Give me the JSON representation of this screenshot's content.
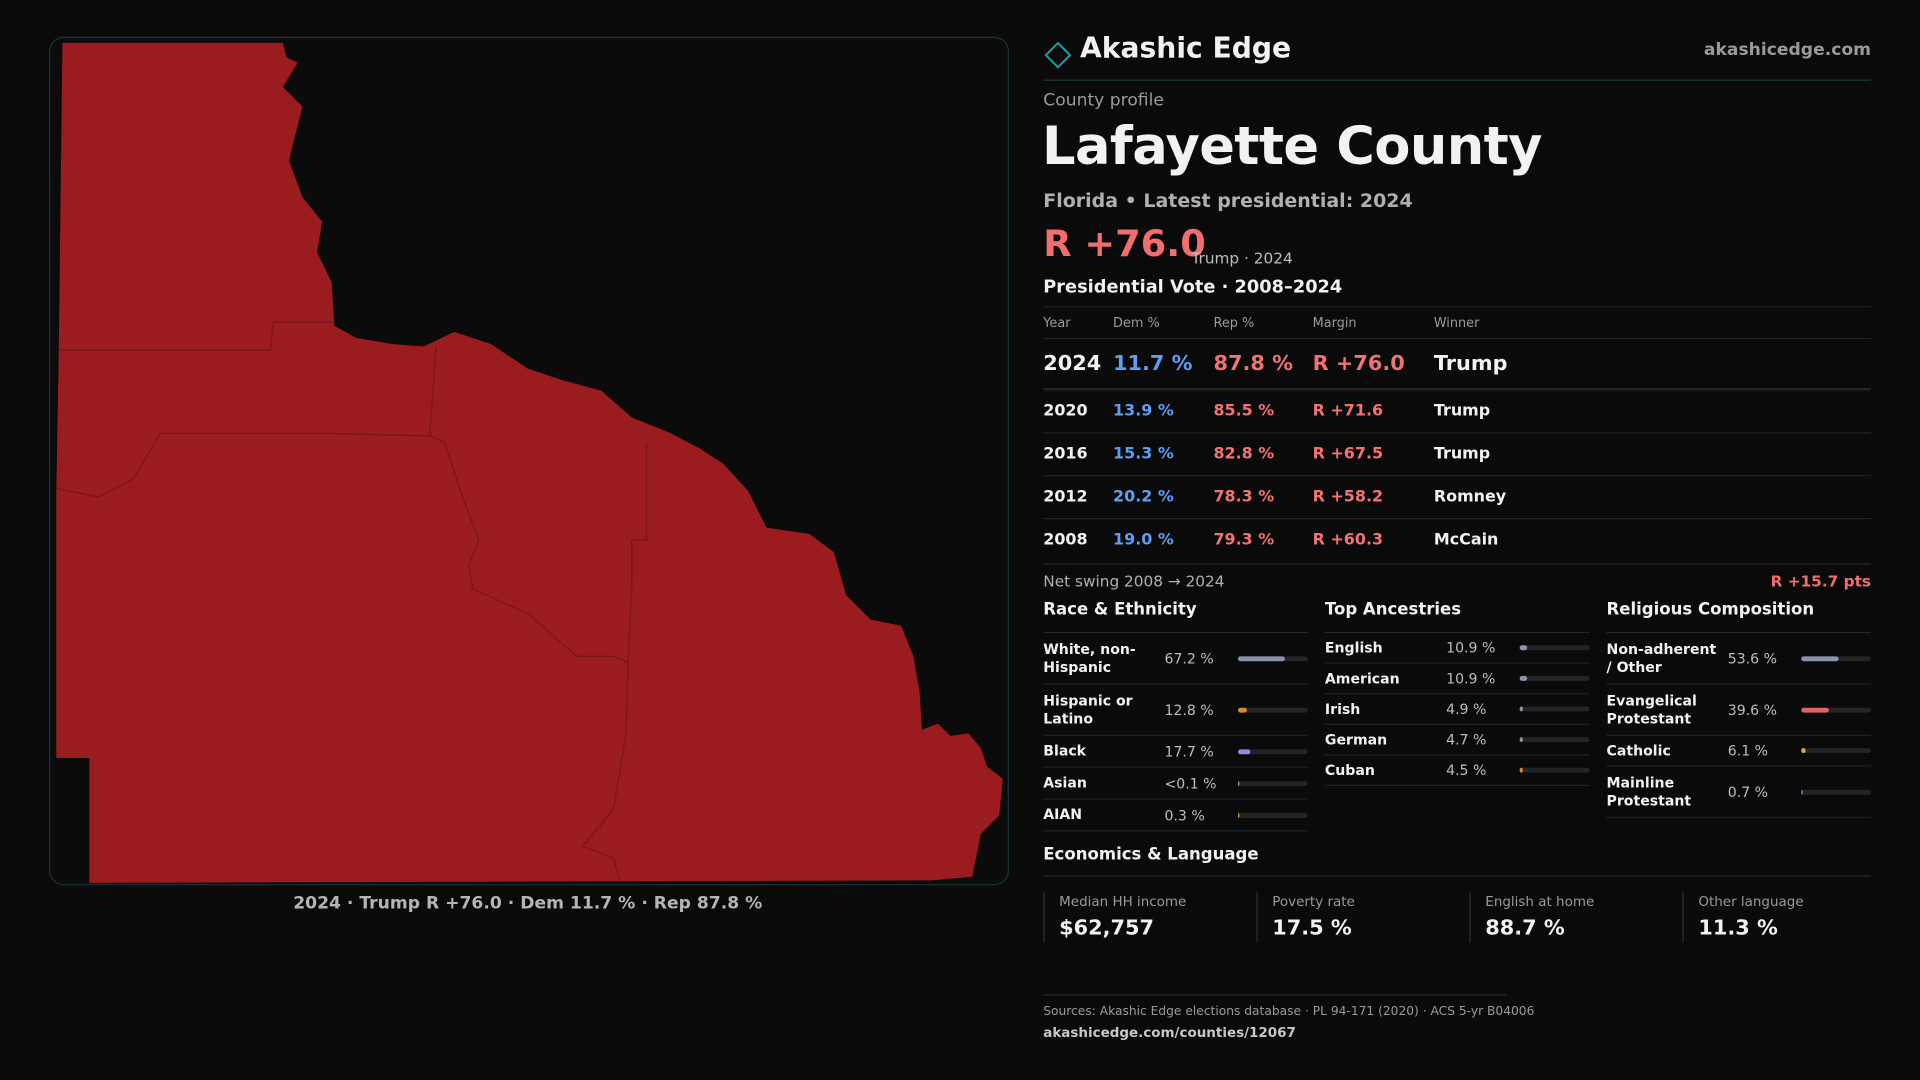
{
  "brand": {
    "name": "Akashic Edge",
    "url": "akashicedge.com"
  },
  "map": {
    "caption": "2024 · Trump R +76.0 · Dem 11.7 % · Rep 87.8 %"
  },
  "profile": {
    "kicker": "County profile",
    "title": "Lafayette County",
    "subtitle": "Florida • Latest presidential: 2024",
    "margin": "R +76.0",
    "margin_note": "Trump · 2024"
  },
  "vote_table": {
    "title": "Presidential Vote · 2008–2024",
    "columns": [
      "Year",
      "Dem %",
      "Rep %",
      "Margin",
      "Winner"
    ],
    "rows": [
      [
        "2024",
        "11.7 %",
        "87.8 %",
        "R +76.0",
        "Trump"
      ],
      [
        "2020",
        "13.9 %",
        "85.5 %",
        "R +71.6",
        "Trump"
      ],
      [
        "2016",
        "15.3 %",
        "82.8 %",
        "R +67.5",
        "Trump"
      ],
      [
        "2012",
        "20.2 %",
        "78.3 %",
        "R +58.2",
        "Romney"
      ],
      [
        "2008",
        "19.0 %",
        "79.3 %",
        "R +60.3",
        "McCain"
      ]
    ]
  },
  "swing": {
    "label": "Net swing 2008 → 2024",
    "value": "R +15.7 pts"
  },
  "race": {
    "title": "Race & Ethnicity",
    "rows": [
      {
        "name": "White, non-Hispanic",
        "value": 67.2,
        "label": "67.2 %",
        "color": "#8a93a8"
      },
      {
        "name": "Hispanic or Latino",
        "value": 12.8,
        "label": "12.8 %",
        "color": "#d98a2b"
      },
      {
        "name": "Black",
        "value": 17.7,
        "label": "17.7 %",
        "color": "#9d80e3"
      },
      {
        "name": "Asian",
        "value": 0.05,
        "label": "<0.1 %",
        "color": "#5fb0a0"
      },
      {
        "name": "AIAN",
        "value": 0.3,
        "label": "0.3 %",
        "color": "#d98a2b"
      }
    ]
  },
  "ancestries": {
    "title": "Top Ancestries",
    "rows": [
      {
        "name": "English",
        "value": 10.9,
        "label": "10.9 %",
        "color": "#8a93a8"
      },
      {
        "name": "American",
        "value": 10.9,
        "label": "10.9 %",
        "color": "#8a93a8"
      },
      {
        "name": "Irish",
        "value": 4.9,
        "label": "4.9 %",
        "color": "#8a93a8"
      },
      {
        "name": "German",
        "value": 4.7,
        "label": "4.7 %",
        "color": "#8a93a8"
      },
      {
        "name": "Cuban",
        "value": 4.5,
        "label": "4.5 %",
        "color": "#d98a2b"
      }
    ]
  },
  "religion": {
    "title": "Religious Composition",
    "rows": [
      {
        "name": "Non-adherent / Other",
        "value": 53.6,
        "label": "53.6 %",
        "color": "#8a93a8"
      },
      {
        "name": "Evangelical Protestant",
        "value": 39.6,
        "label": "39.6 %",
        "color": "#e06262"
      },
      {
        "name": "Catholic",
        "value": 6.1,
        "label": "6.1 %",
        "color": "#e0b335"
      },
      {
        "name": "Mainline Protestant",
        "value": 0.7,
        "label": "0.7 %",
        "color": "#6c8fd6"
      }
    ]
  },
  "economics": {
    "title": "Economics & Language",
    "stats": [
      {
        "label": "Median HH income",
        "value": "$62,757"
      },
      {
        "label": "Poverty rate",
        "value": "17.5 %"
      },
      {
        "label": "English at home",
        "value": "88.7 %"
      },
      {
        "label": "Other language",
        "value": "11.3 %"
      }
    ]
  },
  "sources": {
    "text": "Sources: Akashic Edge elections database · PL 94-171 (2020) · ACS 5-yr B04006",
    "url": "akashicedge.com/counties/12067"
  }
}
